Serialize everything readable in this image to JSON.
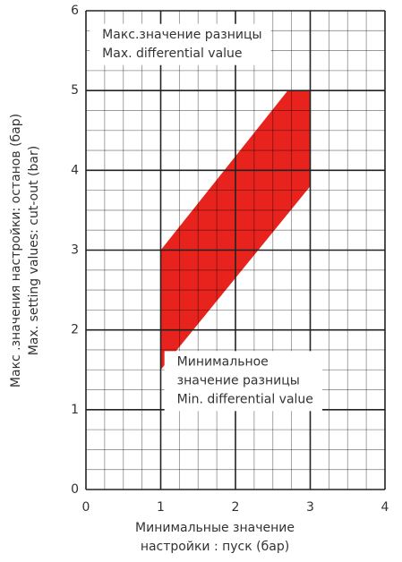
{
  "chart_data": {
    "type": "polygon",
    "x": [
      1,
      1,
      2.7,
      3,
      3
    ],
    "y": [
      1.5,
      3,
      5,
      5,
      3.8
    ],
    "color": "#e8231d",
    "xlim": [
      0,
      4
    ],
    "ylim": [
      0,
      6
    ],
    "xticks": [
      0,
      1,
      2,
      3,
      4
    ],
    "yticks": [
      0,
      1,
      2,
      3,
      4,
      5,
      6
    ],
    "grid": true,
    "minor_grid": 0.25,
    "y_label": [
      "Макс .значения настройки: останов (бар)",
      "Max. setting values: cut-out (bar)"
    ],
    "x_label": [
      "Минимальные значение",
      "настройки : пуск (бар)"
    ],
    "annotations": [
      {
        "lines": [
          "Макс.значение разницы",
          "Max. differential value"
        ],
        "x": 0.05,
        "y": 5.7
      },
      {
        "lines": [
          "Минимальное",
          "значение разницы",
          "Min. differential value"
        ],
        "x": 1.05,
        "y": 1.6
      }
    ]
  }
}
